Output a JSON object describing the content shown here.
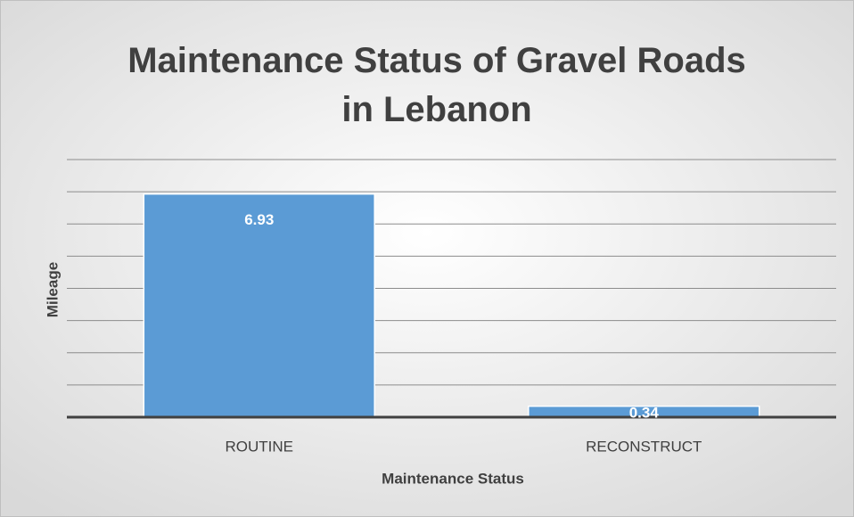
{
  "chart_data": {
    "type": "bar",
    "title": "Maintenance Status of Gravel Roads in Lebanon",
    "x_label": "Maintenance Status",
    "y_label": "Mileage",
    "categories": [
      "ROUTINE",
      "RECONSTRUCT"
    ],
    "values": [
      6.93,
      0.34
    ],
    "color": "#5b9bd5",
    "ylim": [
      0,
      8
    ],
    "yticks": [
      0,
      1,
      2,
      3,
      4,
      5,
      6,
      7,
      8
    ],
    "grid": true
  }
}
